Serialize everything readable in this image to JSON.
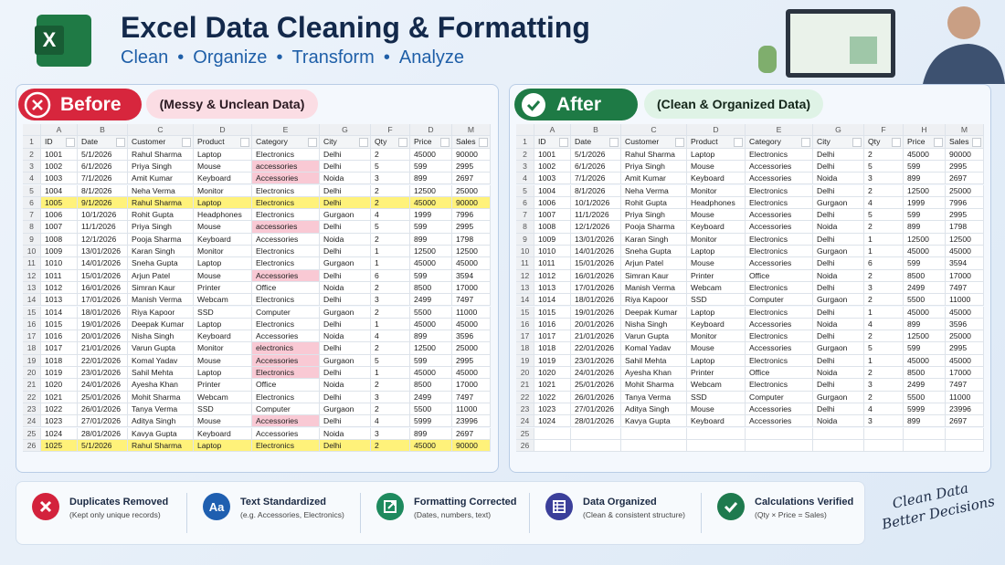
{
  "header": {
    "logo": "X",
    "title": "Excel Data Cleaning & Formatting",
    "subtitle": [
      "Clean",
      "Organize",
      "Transform",
      "Analyze"
    ]
  },
  "before": {
    "badge": "Before",
    "caption": "(Messy & Unclean Data)",
    "duplicate_rows": [
      4,
      24
    ],
    "flagged_category_rows": [
      1,
      2,
      6,
      10,
      16,
      17,
      18,
      22
    ],
    "table": {
      "columns": [
        "A",
        "B",
        "C",
        "D",
        "E",
        "G",
        "F",
        "D",
        "M"
      ],
      "headers": [
        "1",
        "ID",
        "Date",
        "Customer",
        "Product",
        "Category",
        "City",
        "Qty",
        "Price",
        "Sales"
      ],
      "rows": [
        [
          "2",
          "1001",
          "5/1/2026",
          "Rahul Sharma",
          "Laptop",
          "Electronics",
          "Delhi",
          "2",
          "45000",
          "90000"
        ],
        [
          "3",
          "1002",
          "6/1/2026",
          "Priya Singh",
          "Mouse",
          "accessories",
          "Delhi",
          "5",
          "599",
          "2995"
        ],
        [
          "4",
          "1003",
          "7/1/2026",
          "Amit Kumar",
          "Keyboard",
          "Accessories",
          "Noida",
          "3",
          "899",
          "2697"
        ],
        [
          "5",
          "1004",
          "8/1/2026",
          "Neha Verma",
          "Monitor",
          "Electronics",
          "Delhi",
          "2",
          "12500",
          "25000"
        ],
        [
          "6",
          "1005",
          "9/1/2026",
          "Rahul Sharma",
          "Laptop",
          "Electronics",
          "Delhi",
          "2",
          "45000",
          "90000"
        ],
        [
          "7",
          "1006",
          "10/1/2026",
          "Rohit Gupta",
          "Headphones",
          "Electronics",
          "Gurgaon",
          "4",
          "1999",
          "7996"
        ],
        [
          "8",
          "1007",
          "11/1/2026",
          "Priya Singh",
          "Mouse",
          "accessories",
          "Delhi",
          "5",
          "599",
          "2995"
        ],
        [
          "9",
          "1008",
          "12/1/2026",
          "Pooja Sharma",
          "Keyboard",
          "Accessories",
          "Noida",
          "2",
          "899",
          "1798"
        ],
        [
          "10",
          "1009",
          "13/01/2026",
          "Karan Singh",
          "Monitor",
          "Electronics",
          "Delhi",
          "1",
          "12500",
          "12500"
        ],
        [
          "11",
          "1010",
          "14/01/2026",
          "Sneha Gupta",
          "Laptop",
          "Electronics",
          "Gurgaon",
          "1",
          "45000",
          "45000"
        ],
        [
          "12",
          "1011",
          "15/01/2026",
          "Arjun Patel",
          "Mouse",
          "Accessories",
          "Delhi",
          "6",
          "599",
          "3594"
        ],
        [
          "13",
          "1012",
          "16/01/2026",
          "Simran Kaur",
          "Printer",
          "Office",
          "Noida",
          "2",
          "8500",
          "17000"
        ],
        [
          "14",
          "1013",
          "17/01/2026",
          "Manish Verma",
          "Webcam",
          "Electronics",
          "Delhi",
          "3",
          "2499",
          "7497"
        ],
        [
          "15",
          "1014",
          "18/01/2026",
          "Riya Kapoor",
          "SSD",
          "Computer",
          "Gurgaon",
          "2",
          "5500",
          "11000"
        ],
        [
          "16",
          "1015",
          "19/01/2026",
          "Deepak Kumar",
          "Laptop",
          "Electronics",
          "Delhi",
          "1",
          "45000",
          "45000"
        ],
        [
          "17",
          "1016",
          "20/01/2026",
          "Nisha Singh",
          "Keyboard",
          "Accessories",
          "Noida",
          "4",
          "899",
          "3596"
        ],
        [
          "18",
          "1017",
          "21/01/2026",
          "Varun Gupta",
          "Monitor",
          "electronics",
          "Delhi",
          "2",
          "12500",
          "25000"
        ],
        [
          "19",
          "1018",
          "22/01/2026",
          "Komal Yadav",
          "Mouse",
          "Accessories",
          "Gurgaon",
          "5",
          "599",
          "2995"
        ],
        [
          "20",
          "1019",
          "23/01/2026",
          "Sahil Mehta",
          "Laptop",
          "Electronics",
          "Delhi",
          "1",
          "45000",
          "45000"
        ],
        [
          "21",
          "1020",
          "24/01/2026",
          "Ayesha Khan",
          "Printer",
          "Office",
          "Noida",
          "2",
          "8500",
          "17000"
        ],
        [
          "22",
          "1021",
          "25/01/2026",
          "Mohit Sharma",
          "Webcam",
          "Electronics",
          "Delhi",
          "3",
          "2499",
          "7497"
        ],
        [
          "23",
          "1022",
          "26/01/2026",
          "Tanya Verma",
          "SSD",
          "Computer",
          "Gurgaon",
          "2",
          "5500",
          "11000"
        ],
        [
          "24",
          "1023",
          "27/01/2026",
          "Aditya Singh",
          "Mouse",
          "Accessories",
          "Delhi",
          "4",
          "5999",
          "23996"
        ],
        [
          "25",
          "1024",
          "28/01/2026",
          "Kavya Gupta",
          "Keyboard",
          "Accessories",
          "Noida",
          "3",
          "899",
          "2697"
        ],
        [
          "26",
          "1025",
          "5/1/2026",
          "Rahul Sharma",
          "Laptop",
          "Electronics",
          "Delhi",
          "2",
          "45000",
          "90000"
        ]
      ]
    }
  },
  "after": {
    "badge": "After",
    "caption": "(Clean & Organized Data)",
    "table": {
      "columns": [
        "A",
        "B",
        "C",
        "D",
        "E",
        "G",
        "F",
        "H",
        "M"
      ],
      "headers": [
        "1",
        "ID",
        "Date",
        "Customer",
        "Product",
        "Category",
        "City",
        "Qty",
        "Price",
        "Sales"
      ],
      "rows": [
        [
          "2",
          "1001",
          "5/1/2026",
          "Rahul Sharma",
          "Laptop",
          "Electronics",
          "Delhi",
          "2",
          "45000",
          "90000"
        ],
        [
          "3",
          "1002",
          "6/1/2026",
          "Priya Singh",
          "Mouse",
          "Accessories",
          "Delhi",
          "5",
          "599",
          "2995"
        ],
        [
          "4",
          "1003",
          "7/1/2026",
          "Amit Kumar",
          "Keyboard",
          "Accessories",
          "Noida",
          "3",
          "899",
          "2697"
        ],
        [
          "5",
          "1004",
          "8/1/2026",
          "Neha Verma",
          "Monitor",
          "Electronics",
          "Delhi",
          "2",
          "12500",
          "25000"
        ],
        [
          "6",
          "1006",
          "10/1/2026",
          "Rohit Gupta",
          "Headphones",
          "Electronics",
          "Gurgaon",
          "4",
          "1999",
          "7996"
        ],
        [
          "7",
          "1007",
          "11/1/2026",
          "Priya Singh",
          "Mouse",
          "Accessories",
          "Delhi",
          "5",
          "599",
          "2995"
        ],
        [
          "8",
          "1008",
          "12/1/2026",
          "Pooja Sharma",
          "Keyboard",
          "Accessories",
          "Noida",
          "2",
          "899",
          "1798"
        ],
        [
          "9",
          "1009",
          "13/01/2026",
          "Karan Singh",
          "Monitor",
          "Electronics",
          "Delhi",
          "1",
          "12500",
          "12500"
        ],
        [
          "10",
          "1010",
          "14/01/2026",
          "Sneha Gupta",
          "Laptop",
          "Electronics",
          "Gurgaon",
          "1",
          "45000",
          "45000"
        ],
        [
          "11",
          "1011",
          "15/01/2026",
          "Arjun Patel",
          "Mouse",
          "Accessories",
          "Delhi",
          "6",
          "599",
          "3594"
        ],
        [
          "12",
          "1012",
          "16/01/2026",
          "Simran Kaur",
          "Printer",
          "Office",
          "Noida",
          "2",
          "8500",
          "17000"
        ],
        [
          "13",
          "1013",
          "17/01/2026",
          "Manish Verma",
          "Webcam",
          "Electronics",
          "Delhi",
          "3",
          "2499",
          "7497"
        ],
        [
          "14",
          "1014",
          "18/01/2026",
          "Riya Kapoor",
          "SSD",
          "Computer",
          "Gurgaon",
          "2",
          "5500",
          "11000"
        ],
        [
          "15",
          "1015",
          "19/01/2026",
          "Deepak Kumar",
          "Laptop",
          "Electronics",
          "Delhi",
          "1",
          "45000",
          "45000"
        ],
        [
          "16",
          "1016",
          "20/01/2026",
          "Nisha Singh",
          "Keyboard",
          "Accessories",
          "Noida",
          "4",
          "899",
          "3596"
        ],
        [
          "17",
          "1017",
          "21/01/2026",
          "Varun Gupta",
          "Monitor",
          "Electronics",
          "Delhi",
          "2",
          "12500",
          "25000"
        ],
        [
          "18",
          "1018",
          "22/01/2026",
          "Komal Yadav",
          "Mouse",
          "Accessories",
          "Gurgaon",
          "5",
          "599",
          "2995"
        ],
        [
          "19",
          "1019",
          "23/01/2026",
          "Sahil Mehta",
          "Laptop",
          "Electronics",
          "Delhi",
          "1",
          "45000",
          "45000"
        ],
        [
          "20",
          "1020",
          "24/01/2026",
          "Ayesha Khan",
          "Printer",
          "Office",
          "Noida",
          "2",
          "8500",
          "17000"
        ],
        [
          "21",
          "1021",
          "25/01/2026",
          "Mohit Sharma",
          "Webcam",
          "Electronics",
          "Delhi",
          "3",
          "2499",
          "7497"
        ],
        [
          "22",
          "1022",
          "26/01/2026",
          "Tanya Verma",
          "SSD",
          "Computer",
          "Gurgaon",
          "2",
          "5500",
          "11000"
        ],
        [
          "23",
          "1023",
          "27/01/2026",
          "Aditya Singh",
          "Mouse",
          "Accessories",
          "Delhi",
          "4",
          "5999",
          "23996"
        ],
        [
          "24",
          "1024",
          "28/01/2026",
          "Kavya Gupta",
          "Keyboard",
          "Accessories",
          "Noida",
          "3",
          "899",
          "2697"
        ],
        [
          "25"
        ],
        [
          "26"
        ]
      ]
    }
  },
  "features": [
    {
      "title": "Duplicates Removed",
      "subtitle": "(Kept only unique records)"
    },
    {
      "icon": "Aa",
      "title": "Text Standardized",
      "subtitle": "(e.g. Accessories, Electronics)"
    },
    {
      "title": "Formatting Corrected",
      "subtitle": "(Dates, numbers, text)"
    },
    {
      "title": "Data Organized",
      "subtitle": "(Clean & consistent structure)"
    },
    {
      "title": "Calculations Verified",
      "subtitle": "(Qty × Price = Sales)"
    }
  ],
  "signature": [
    "Clean Data",
    "Better Decisions"
  ]
}
